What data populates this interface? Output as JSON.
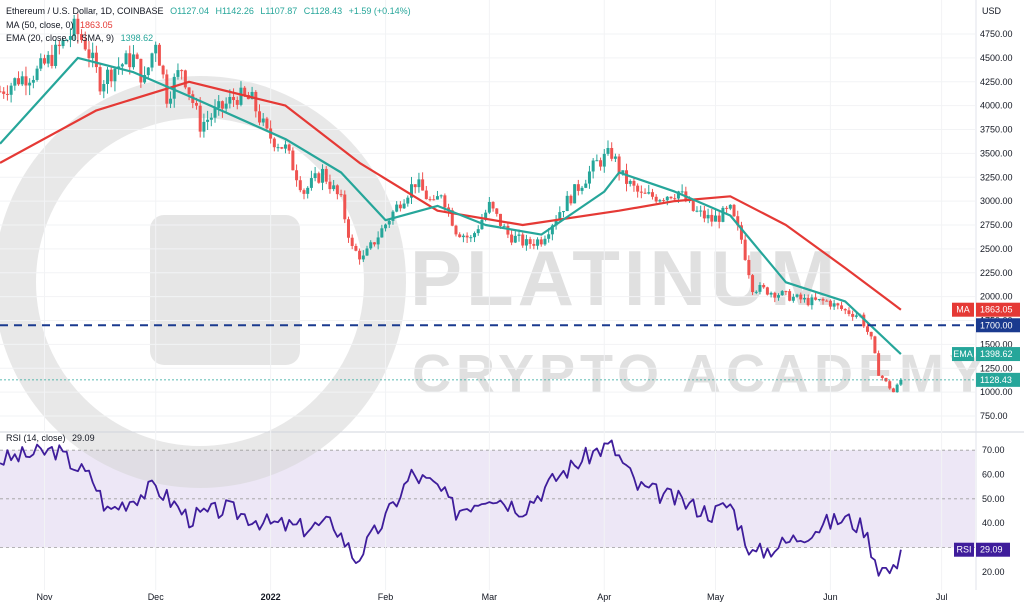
{
  "header": {
    "symbol_line": "Ethereum / U.S. Dollar, 1D, COINBASE",
    "open": "O1127.04",
    "high": "H1142.26",
    "low": "L1107.87",
    "close": "C1128.43",
    "change": "+1.59 (+0.14%)",
    "ma_label": "MA (50, close, 0)",
    "ma_value": "1863.05",
    "ema_label": "EMA (20, close, 0, SMA, 9)",
    "ema_value": "1398.62",
    "rsi_label": "RSI (14, close)",
    "rsi_value": "29.09"
  },
  "watermark": {
    "line1": "PLATINUM",
    "line2": "CRYPTO ACADEMY"
  },
  "currency": "USD",
  "colors": {
    "up": "#26a69a",
    "down": "#ef5350",
    "ma": "#e53935",
    "ema": "#26a69a",
    "rsi": "#3f1d9b",
    "level": "#1a3a8f",
    "rsi_band": "#ede7f6",
    "watermark": "#d6d6d6"
  },
  "chart_data": [
    {
      "type": "candlestick",
      "title": "Ethereum / U.S. Dollar, 1D, COINBASE",
      "ylabel": "USD",
      "ylim": [
        650,
        5000
      ],
      "y_ticks": [
        "4750.00",
        "4500.00",
        "4250.00",
        "4000.00",
        "3750.00",
        "3500.00",
        "3250.00",
        "3000.00",
        "2750.00",
        "2500.00",
        "2250.00",
        "2000.00",
        "1750.00",
        "1500.00",
        "1250.00",
        "1000.00",
        "750.00"
      ],
      "x_ticks": [
        "Nov",
        "Dec",
        "2022",
        "Feb",
        "Mar",
        "Apr",
        "May",
        "Jun",
        "Jul"
      ],
      "price_path": [
        [
          "2021-10-20",
          4150
        ],
        [
          "2021-10-25",
          4280
        ],
        [
          "2021-10-30",
          4350
        ],
        [
          "2021-11-04",
          4550
        ],
        [
          "2021-11-09",
          4800
        ],
        [
          "2021-11-12",
          4650
        ],
        [
          "2021-11-16",
          4250
        ],
        [
          "2021-11-20",
          4400
        ],
        [
          "2021-11-25",
          4500
        ],
        [
          "2021-11-28",
          4250
        ],
        [
          "2021-12-01",
          4700
        ],
        [
          "2021-12-04",
          4100
        ],
        [
          "2021-12-08",
          4400
        ],
        [
          "2021-12-13",
          3800
        ],
        [
          "2021-12-18",
          3950
        ],
        [
          "2021-12-23",
          4100
        ],
        [
          "2021-12-27",
          4050
        ],
        [
          "2021-12-31",
          3700
        ],
        [
          "2022-01-05",
          3550
        ],
        [
          "2022-01-10",
          3100
        ],
        [
          "2022-01-15",
          3300
        ],
        [
          "2022-01-20",
          3000
        ],
        [
          "2022-01-23",
          2500
        ],
        [
          "2022-01-26",
          2400
        ],
        [
          "2022-01-31",
          2700
        ],
        [
          "2022-02-05",
          3000
        ],
        [
          "2022-02-09",
          3200
        ],
        [
          "2022-02-14",
          2950
        ],
        [
          "2022-02-16",
          3100
        ],
        [
          "2022-02-20",
          2700
        ],
        [
          "2022-02-24",
          2600
        ],
        [
          "2022-03-01",
          2950
        ],
        [
          "2022-03-06",
          2650
        ],
        [
          "2022-03-11",
          2550
        ],
        [
          "2022-03-15",
          2600
        ],
        [
          "2022-03-20",
          2900
        ],
        [
          "2022-03-25",
          3150
        ],
        [
          "2022-03-30",
          3400
        ],
        [
          "2022-04-03",
          3500
        ],
        [
          "2022-04-06",
          3250
        ],
        [
          "2022-04-11",
          3050
        ],
        [
          "2022-04-16",
          3050
        ],
        [
          "2022-04-21",
          3100
        ],
        [
          "2022-04-25",
          2900
        ],
        [
          "2022-04-30",
          2800
        ],
        [
          "2022-05-05",
          2900
        ],
        [
          "2022-05-08",
          2600
        ],
        [
          "2022-05-11",
          2100
        ],
        [
          "2022-05-16",
          2050
        ],
        [
          "2022-05-21",
          2000
        ],
        [
          "2022-05-26",
          1950
        ],
        [
          "2022-05-31",
          1950
        ],
        [
          "2022-06-05",
          1850
        ],
        [
          "2022-06-09",
          1800
        ],
        [
          "2022-06-12",
          1550
        ],
        [
          "2022-06-14",
          1200
        ],
        [
          "2022-06-18",
          1000
        ],
        [
          "2022-06-20",
          1128.43
        ]
      ],
      "ma_path": [
        [
          "2021-10-20",
          3400
        ],
        [
          "2021-11-15",
          3950
        ],
        [
          "2021-12-10",
          4250
        ],
        [
          "2022-01-05",
          4000
        ],
        [
          "2022-01-25",
          3400
        ],
        [
          "2022-02-15",
          2900
        ],
        [
          "2022-03-10",
          2750
        ],
        [
          "2022-04-05",
          2900
        ],
        [
          "2022-04-20",
          3000
        ],
        [
          "2022-05-05",
          3050
        ],
        [
          "2022-05-20",
          2750
        ],
        [
          "2022-06-05",
          2300
        ],
        [
          "2022-06-20",
          1863.05
        ]
      ],
      "ema_path": [
        [
          "2021-10-20",
          3600
        ],
        [
          "2021-11-10",
          4500
        ],
        [
          "2021-11-25",
          4350
        ],
        [
          "2021-12-10",
          4100
        ],
        [
          "2022-01-05",
          3650
        ],
        [
          "2022-01-20",
          3300
        ],
        [
          "2022-02-01",
          2800
        ],
        [
          "2022-02-15",
          2950
        ],
        [
          "2022-02-28",
          2750
        ],
        [
          "2022-03-15",
          2650
        ],
        [
          "2022-04-01",
          3100
        ],
        [
          "2022-04-05",
          3300
        ],
        [
          "2022-04-20",
          3100
        ],
        [
          "2022-05-05",
          2850
        ],
        [
          "2022-05-20",
          2150
        ],
        [
          "2022-06-05",
          1950
        ],
        [
          "2022-06-20",
          1398.62
        ]
      ],
      "horizontal_level": 1700,
      "level_label": "1700.00",
      "last_price": 1128.43,
      "ma_label": "MA",
      "ma_value": "1863.05",
      "ema_label": "EMA",
      "ema_value": "1398.62",
      "close_label": "1128.43"
    },
    {
      "type": "line",
      "title": "RSI (14, close)",
      "ylim": [
        15,
        75
      ],
      "y_ticks": [
        "70.00",
        "60.00",
        "50.00",
        "40.00",
        "30.00",
        "20.00"
      ],
      "band": [
        30,
        70
      ],
      "values": [
        [
          "2021-10-20",
          66
        ],
        [
          "2021-11-04",
          70
        ],
        [
          "2021-11-14",
          58
        ],
        [
          "2021-11-18",
          45
        ],
        [
          "2021-12-01",
          55
        ],
        [
          "2021-12-10",
          42
        ],
        [
          "2021-12-20",
          46
        ],
        [
          "2021-12-31",
          40
        ],
        [
          "2022-01-10",
          38
        ],
        [
          "2022-01-18",
          40
        ],
        [
          "2022-01-24",
          25
        ],
        [
          "2022-02-01",
          42
        ],
        [
          "2022-02-08",
          60
        ],
        [
          "2022-02-15",
          55
        ],
        [
          "2022-02-20",
          45
        ],
        [
          "2022-03-01",
          52
        ],
        [
          "2022-03-10",
          46
        ],
        [
          "2022-03-20",
          60
        ],
        [
          "2022-03-30",
          70
        ],
        [
          "2022-04-03",
          72
        ],
        [
          "2022-04-10",
          55
        ],
        [
          "2022-04-20",
          50
        ],
        [
          "2022-04-30",
          44
        ],
        [
          "2022-05-05",
          48
        ],
        [
          "2022-05-11",
          27
        ],
        [
          "2022-05-20",
          32
        ],
        [
          "2022-05-31",
          40
        ],
        [
          "2022-06-05",
          42
        ],
        [
          "2022-06-10",
          38
        ],
        [
          "2022-06-14",
          22
        ],
        [
          "2022-06-18",
          20
        ],
        [
          "2022-06-20",
          29.09
        ]
      ],
      "label": "RSI",
      "value_label": "29.09"
    }
  ]
}
